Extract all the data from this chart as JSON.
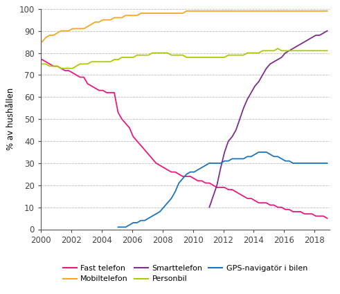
{
  "title": "",
  "ylabel": "% av hushållen",
  "xlim": [
    2000,
    2019
  ],
  "ylim": [
    0,
    100
  ],
  "yticks": [
    0,
    10,
    20,
    30,
    40,
    50,
    60,
    70,
    80,
    90,
    100
  ],
  "xticks": [
    2000,
    2002,
    2004,
    2006,
    2008,
    2010,
    2012,
    2014,
    2016,
    2018
  ],
  "series": [
    {
      "name": "Fast telefon",
      "color": "#E8197E",
      "x": [
        2000.08,
        2000.33,
        2000.58,
        2000.83,
        2001.08,
        2001.33,
        2001.58,
        2001.83,
        2002.08,
        2002.33,
        2002.58,
        2002.83,
        2003.08,
        2003.33,
        2003.58,
        2003.83,
        2004.08,
        2004.33,
        2004.58,
        2004.83,
        2005.08,
        2005.33,
        2005.58,
        2005.83,
        2006.08,
        2006.33,
        2006.58,
        2006.83,
        2007.08,
        2007.33,
        2007.58,
        2007.83,
        2008.08,
        2008.33,
        2008.58,
        2008.83,
        2009.08,
        2009.33,
        2009.58,
        2009.83,
        2010.08,
        2010.33,
        2010.58,
        2010.83,
        2011.08,
        2011.33,
        2011.58,
        2011.83,
        2012.08,
        2012.33,
        2012.58,
        2012.83,
        2013.08,
        2013.33,
        2013.58,
        2013.83,
        2014.08,
        2014.33,
        2014.58,
        2014.83,
        2015.08,
        2015.33,
        2015.58,
        2015.83,
        2016.08,
        2016.33,
        2016.58,
        2016.83,
        2017.08,
        2017.33,
        2017.58,
        2017.83,
        2018.08,
        2018.33,
        2018.58,
        2018.83
      ],
      "y": [
        77,
        76,
        75,
        74,
        74,
        73,
        72,
        72,
        71,
        70,
        69,
        69,
        66,
        65,
        64,
        63,
        63,
        62,
        62,
        62,
        53,
        50,
        48,
        46,
        42,
        40,
        38,
        36,
        34,
        32,
        30,
        29,
        28,
        27,
        26,
        26,
        25,
        24,
        24,
        24,
        23,
        22,
        22,
        21,
        21,
        20,
        19,
        19,
        19,
        18,
        18,
        17,
        16,
        15,
        14,
        14,
        13,
        12,
        12,
        12,
        11,
        11,
        10,
        10,
        9,
        9,
        8,
        8,
        8,
        7,
        7,
        7,
        6,
        6,
        6,
        5
      ]
    },
    {
      "name": "Mobiltelefon",
      "color": "#F5A623",
      "x": [
        2000.08,
        2000.33,
        2000.58,
        2000.83,
        2001.08,
        2001.33,
        2001.58,
        2001.83,
        2002.08,
        2002.33,
        2002.58,
        2002.83,
        2003.08,
        2003.33,
        2003.58,
        2003.83,
        2004.08,
        2004.33,
        2004.58,
        2004.83,
        2005.08,
        2005.33,
        2005.58,
        2005.83,
        2006.08,
        2006.33,
        2006.58,
        2006.83,
        2007.08,
        2007.33,
        2007.58,
        2007.83,
        2008.08,
        2008.33,
        2008.58,
        2008.83,
        2009.08,
        2009.33,
        2009.58,
        2009.83,
        2010.08,
        2010.33,
        2010.58,
        2010.83,
        2011.08,
        2011.33,
        2011.58,
        2011.83,
        2012.08,
        2012.33,
        2012.58,
        2012.83,
        2013.08,
        2013.33,
        2013.58,
        2013.83,
        2014.08,
        2014.33,
        2014.58,
        2014.83,
        2015.08,
        2015.33,
        2015.58,
        2015.83,
        2016.08,
        2016.33,
        2016.58,
        2016.83,
        2017.08,
        2017.33,
        2017.58,
        2017.83,
        2018.08,
        2018.33,
        2018.58,
        2018.83
      ],
      "y": [
        85,
        87,
        88,
        88,
        89,
        90,
        90,
        90,
        91,
        91,
        91,
        91,
        92,
        93,
        94,
        94,
        95,
        95,
        95,
        96,
        96,
        96,
        97,
        97,
        97,
        97,
        98,
        98,
        98,
        98,
        98,
        98,
        98,
        98,
        98,
        98,
        98,
        98,
        99,
        99,
        99,
        99,
        99,
        99,
        99,
        99,
        99,
        99,
        99,
        99,
        99,
        99,
        99,
        99,
        99,
        99,
        99,
        99,
        99,
        99,
        99,
        99,
        99,
        99,
        99,
        99,
        99,
        99,
        99,
        99,
        99,
        99,
        99,
        99,
        99,
        99
      ]
    },
    {
      "name": "Smarttelefon",
      "color": "#7B2D8B",
      "x": [
        2011.08,
        2011.33,
        2011.58,
        2011.83,
        2012.08,
        2012.33,
        2012.58,
        2012.83,
        2013.08,
        2013.33,
        2013.58,
        2013.83,
        2014.08,
        2014.33,
        2014.58,
        2014.83,
        2015.08,
        2015.33,
        2015.58,
        2015.83,
        2016.08,
        2016.33,
        2016.58,
        2016.83,
        2017.08,
        2017.33,
        2017.58,
        2017.83,
        2018.08,
        2018.33,
        2018.58,
        2018.83
      ],
      "y": [
        10,
        15,
        20,
        28,
        35,
        40,
        42,
        45,
        50,
        55,
        59,
        62,
        65,
        67,
        70,
        73,
        75,
        76,
        77,
        78,
        80,
        81,
        82,
        83,
        84,
        85,
        86,
        87,
        88,
        88,
        89,
        90
      ]
    },
    {
      "name": "Personbil",
      "color": "#AACC00",
      "x": [
        2000.08,
        2000.33,
        2000.58,
        2000.83,
        2001.08,
        2001.33,
        2001.58,
        2001.83,
        2002.08,
        2002.33,
        2002.58,
        2002.83,
        2003.08,
        2003.33,
        2003.58,
        2003.83,
        2004.08,
        2004.33,
        2004.58,
        2004.83,
        2005.08,
        2005.33,
        2005.58,
        2005.83,
        2006.08,
        2006.33,
        2006.58,
        2006.83,
        2007.08,
        2007.33,
        2007.58,
        2007.83,
        2008.08,
        2008.33,
        2008.58,
        2008.83,
        2009.08,
        2009.33,
        2009.58,
        2009.83,
        2010.08,
        2010.33,
        2010.58,
        2010.83,
        2011.08,
        2011.33,
        2011.58,
        2011.83,
        2012.08,
        2012.33,
        2012.58,
        2012.83,
        2013.08,
        2013.33,
        2013.58,
        2013.83,
        2014.08,
        2014.33,
        2014.58,
        2014.83,
        2015.08,
        2015.33,
        2015.58,
        2015.83,
        2016.08,
        2016.33,
        2016.58,
        2016.83,
        2017.08,
        2017.33,
        2017.58,
        2017.83,
        2018.08,
        2018.33,
        2018.58,
        2018.83
      ],
      "y": [
        75,
        75,
        74,
        74,
        74,
        73,
        73,
        73,
        73,
        74,
        75,
        75,
        75,
        76,
        76,
        76,
        76,
        76,
        76,
        77,
        77,
        78,
        78,
        78,
        78,
        79,
        79,
        79,
        79,
        80,
        80,
        80,
        80,
        80,
        79,
        79,
        79,
        79,
        78,
        78,
        78,
        78,
        78,
        78,
        78,
        78,
        78,
        78,
        78,
        79,
        79,
        79,
        79,
        79,
        80,
        80,
        80,
        80,
        81,
        81,
        81,
        81,
        82,
        81,
        81,
        81,
        81,
        81,
        81,
        81,
        81,
        81,
        81,
        81,
        81,
        81
      ]
    },
    {
      "name": "GPS-navigatör i bilen",
      "color": "#1B74BC",
      "x": [
        2005.08,
        2005.33,
        2005.58,
        2005.83,
        2006.08,
        2006.33,
        2006.58,
        2006.83,
        2007.08,
        2007.33,
        2007.58,
        2007.83,
        2008.08,
        2008.33,
        2008.58,
        2008.83,
        2009.08,
        2009.33,
        2009.58,
        2009.83,
        2010.08,
        2010.33,
        2010.58,
        2010.83,
        2011.08,
        2011.33,
        2011.58,
        2011.83,
        2012.08,
        2012.33,
        2012.58,
        2012.83,
        2013.08,
        2013.33,
        2013.58,
        2013.83,
        2014.08,
        2014.33,
        2014.58,
        2014.83,
        2015.08,
        2015.33,
        2015.58,
        2015.83,
        2016.08,
        2016.33,
        2016.58,
        2016.83,
        2017.08,
        2017.33,
        2017.58,
        2017.83,
        2018.08,
        2018.33,
        2018.58,
        2018.83
      ],
      "y": [
        1,
        1,
        1,
        2,
        3,
        3,
        4,
        4,
        5,
        6,
        7,
        8,
        10,
        12,
        14,
        17,
        21,
        23,
        25,
        26,
        26,
        27,
        28,
        29,
        30,
        30,
        30,
        30,
        31,
        31,
        32,
        32,
        32,
        32,
        33,
        33,
        34,
        35,
        35,
        35,
        34,
        33,
        33,
        32,
        31,
        31,
        30,
        30,
        30,
        30,
        30,
        30,
        30,
        30,
        30,
        30
      ]
    }
  ],
  "legend_order": [
    "Fast telefon",
    "Mobiltelefon",
    "Smarttelefon",
    "Personbil",
    "GPS-navigatör i bilen"
  ],
  "legend_colors": [
    "#E8197E",
    "#F5A623",
    "#7B2D8B",
    "#AACC00",
    "#1B74BC"
  ]
}
